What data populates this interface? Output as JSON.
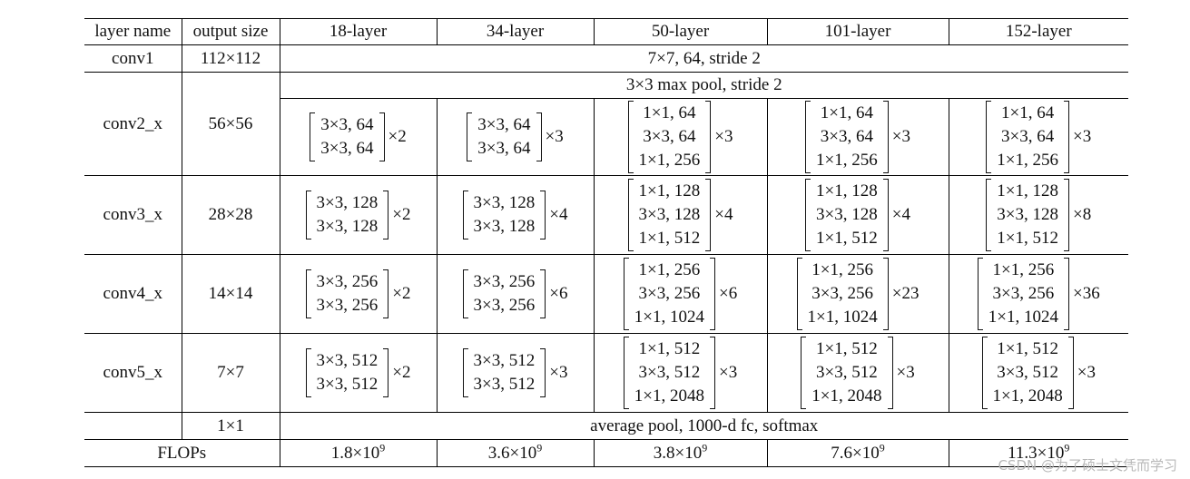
{
  "header": {
    "layer_name": "layer name",
    "output_size": "output size",
    "cols": [
      "18-layer",
      "34-layer",
      "50-layer",
      "101-layer",
      "152-layer"
    ]
  },
  "conv1": {
    "name": "conv1",
    "size": "112×112",
    "desc": "7×7, 64, stride 2"
  },
  "conv2": {
    "name": "conv2_x",
    "size": "56×56",
    "pool": "3×3 max pool, stride 2",
    "blocks": [
      {
        "lines": [
          "3×3, 64",
          "3×3, 64"
        ],
        "mult": "×2"
      },
      {
        "lines": [
          "3×3, 64",
          "3×3, 64"
        ],
        "mult": "×3"
      },
      {
        "lines": [
          "1×1, 64",
          "3×3, 64",
          "1×1, 256"
        ],
        "mult": "×3"
      },
      {
        "lines": [
          "1×1, 64",
          "3×3, 64",
          "1×1, 256"
        ],
        "mult": "×3"
      },
      {
        "lines": [
          "1×1, 64",
          "3×3, 64",
          "1×1, 256"
        ],
        "mult": "×3"
      }
    ]
  },
  "conv3": {
    "name": "conv3_x",
    "size": "28×28",
    "blocks": [
      {
        "lines": [
          "3×3, 128",
          "3×3, 128"
        ],
        "mult": "×2"
      },
      {
        "lines": [
          "3×3, 128",
          "3×3, 128"
        ],
        "mult": "×4"
      },
      {
        "lines": [
          "1×1, 128",
          "3×3, 128",
          "1×1, 512"
        ],
        "mult": "×4"
      },
      {
        "lines": [
          "1×1, 128",
          "3×3, 128",
          "1×1, 512"
        ],
        "mult": "×4"
      },
      {
        "lines": [
          "1×1, 128",
          "3×3, 128",
          "1×1, 512"
        ],
        "mult": "×8"
      }
    ]
  },
  "conv4": {
    "name": "conv4_x",
    "size": "14×14",
    "blocks": [
      {
        "lines": [
          "3×3, 256",
          "3×3, 256"
        ],
        "mult": "×2"
      },
      {
        "lines": [
          "3×3, 256",
          "3×3, 256"
        ],
        "mult": "×6"
      },
      {
        "lines": [
          "1×1, 256",
          "3×3, 256",
          "1×1, 1024"
        ],
        "mult": "×6"
      },
      {
        "lines": [
          "1×1, 256",
          "3×3, 256",
          "1×1, 1024"
        ],
        "mult": "×23"
      },
      {
        "lines": [
          "1×1, 256",
          "3×3, 256",
          "1×1, 1024"
        ],
        "mult": "×36"
      }
    ]
  },
  "conv5": {
    "name": "conv5_x",
    "size": "7×7",
    "blocks": [
      {
        "lines": [
          "3×3, 512",
          "3×3, 512"
        ],
        "mult": "×2"
      },
      {
        "lines": [
          "3×3, 512",
          "3×3, 512"
        ],
        "mult": "×3"
      },
      {
        "lines": [
          "1×1, 512",
          "3×3, 512",
          "1×1, 2048"
        ],
        "mult": "×3"
      },
      {
        "lines": [
          "1×1, 512",
          "3×3, 512",
          "1×1, 2048"
        ],
        "mult": "×3"
      },
      {
        "lines": [
          "1×1, 512",
          "3×3, 512",
          "1×1, 2048"
        ],
        "mult": "×3"
      }
    ]
  },
  "avgpool": {
    "size": "1×1",
    "desc": "average pool, 1000-d fc, softmax"
  },
  "flops": {
    "label": "FLOPs",
    "values": [
      {
        "base": "1.8×10",
        "exp": "9"
      },
      {
        "base": "3.6×10",
        "exp": "9"
      },
      {
        "base": "3.8×10",
        "exp": "9"
      },
      {
        "base": "7.6×10",
        "exp": "9"
      },
      {
        "base": "11.3×10",
        "exp": "9"
      }
    ]
  },
  "watermark": "CSDN @为了硕士文凭而学习"
}
